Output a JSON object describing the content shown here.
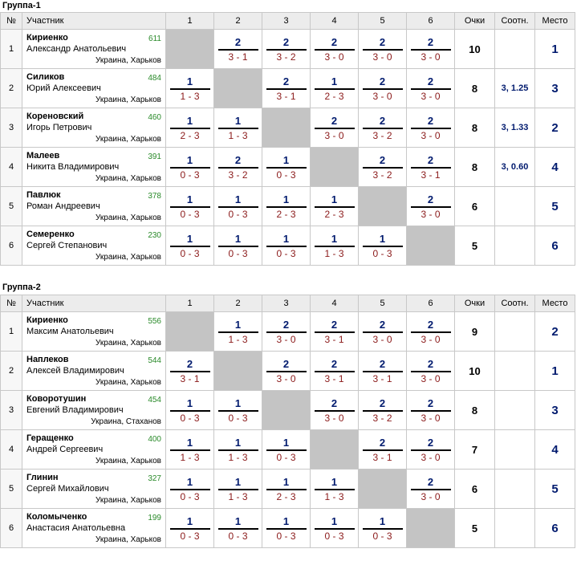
{
  "columns": {
    "num": "№",
    "player": "Участник",
    "opp": [
      "1",
      "2",
      "3",
      "4",
      "5",
      "6"
    ],
    "points": "Очки",
    "ratio": "Соотн.",
    "place": "Место"
  },
  "groups": [
    {
      "title": "Группа-1",
      "rows": [
        {
          "num": "1",
          "name": "Кириенко",
          "full": "Александр Анатольевич",
          "rating": "611",
          "city": "Украина, Харьков",
          "results": [
            null,
            {
              "p": "2",
              "s": "3 - 1"
            },
            {
              "p": "2",
              "s": "3 - 2"
            },
            {
              "p": "2",
              "s": "3 - 0"
            },
            {
              "p": "2",
              "s": "3 - 0"
            },
            {
              "p": "2",
              "s": "3 - 0"
            }
          ],
          "points": "10",
          "ratio": "",
          "place": "1"
        },
        {
          "num": "2",
          "name": "Силиков",
          "full": "Юрий Алексеевич",
          "rating": "484",
          "city": "Украина, Харьков",
          "results": [
            {
              "p": "1",
              "s": "1 - 3"
            },
            null,
            {
              "p": "2",
              "s": "3 - 1"
            },
            {
              "p": "1",
              "s": "2 - 3"
            },
            {
              "p": "2",
              "s": "3 - 0"
            },
            {
              "p": "2",
              "s": "3 - 0"
            }
          ],
          "points": "8",
          "ratio": "3, 1.25",
          "place": "3"
        },
        {
          "num": "3",
          "name": "Кореновский",
          "full": "Игорь Петрович",
          "rating": "460",
          "city": "Украина, Харьков",
          "results": [
            {
              "p": "1",
              "s": "2 - 3"
            },
            {
              "p": "1",
              "s": "1 - 3"
            },
            null,
            {
              "p": "2",
              "s": "3 - 0"
            },
            {
              "p": "2",
              "s": "3 - 2"
            },
            {
              "p": "2",
              "s": "3 - 0"
            }
          ],
          "points": "8",
          "ratio": "3, 1.33",
          "place": "2"
        },
        {
          "num": "4",
          "name": "Малеев",
          "full": "Никита Владимирович",
          "rating": "391",
          "city": "Украина, Харьков",
          "results": [
            {
              "p": "1",
              "s": "0 - 3"
            },
            {
              "p": "2",
              "s": "3 - 2"
            },
            {
              "p": "1",
              "s": "0 - 3"
            },
            null,
            {
              "p": "2",
              "s": "3 - 2"
            },
            {
              "p": "2",
              "s": "3 - 1"
            }
          ],
          "points": "8",
          "ratio": "3, 0.60",
          "place": "4"
        },
        {
          "num": "5",
          "name": "Павлюк",
          "full": "Роман Андреевич",
          "rating": "378",
          "city": "Украина, Харьков",
          "results": [
            {
              "p": "1",
              "s": "0 - 3"
            },
            {
              "p": "1",
              "s": "0 - 3"
            },
            {
              "p": "1",
              "s": "2 - 3"
            },
            {
              "p": "1",
              "s": "2 - 3"
            },
            null,
            {
              "p": "2",
              "s": "3 - 0"
            }
          ],
          "points": "6",
          "ratio": "",
          "place": "5"
        },
        {
          "num": "6",
          "name": "Семеренко",
          "full": "Сергей Степанович",
          "rating": "230",
          "city": "Украина, Харьков",
          "results": [
            {
              "p": "1",
              "s": "0 - 3"
            },
            {
              "p": "1",
              "s": "0 - 3"
            },
            {
              "p": "1",
              "s": "0 - 3"
            },
            {
              "p": "1",
              "s": "1 - 3"
            },
            {
              "p": "1",
              "s": "0 - 3"
            },
            null
          ],
          "points": "5",
          "ratio": "",
          "place": "6"
        }
      ]
    },
    {
      "title": "Группа-2",
      "rows": [
        {
          "num": "1",
          "name": "Кириенко",
          "full": "Максим Анатольевич",
          "rating": "556",
          "city": "Украина, Харьков",
          "results": [
            null,
            {
              "p": "1",
              "s": "1 - 3"
            },
            {
              "p": "2",
              "s": "3 - 0"
            },
            {
              "p": "2",
              "s": "3 - 1"
            },
            {
              "p": "2",
              "s": "3 - 0"
            },
            {
              "p": "2",
              "s": "3 - 0"
            }
          ],
          "points": "9",
          "ratio": "",
          "place": "2"
        },
        {
          "num": "2",
          "name": "Наплеков",
          "full": "Алексей Владимирович",
          "rating": "544",
          "city": "Украина, Харьков",
          "results": [
            {
              "p": "2",
              "s": "3 - 1"
            },
            null,
            {
              "p": "2",
              "s": "3 - 0"
            },
            {
              "p": "2",
              "s": "3 - 1"
            },
            {
              "p": "2",
              "s": "3 - 1"
            },
            {
              "p": "2",
              "s": "3 - 0"
            }
          ],
          "points": "10",
          "ratio": "",
          "place": "1"
        },
        {
          "num": "3",
          "name": "Коворотушин",
          "full": "Евгений Владимирович",
          "rating": "454",
          "city": "Украина, Стаханов",
          "results": [
            {
              "p": "1",
              "s": "0 - 3"
            },
            {
              "p": "1",
              "s": "0 - 3"
            },
            null,
            {
              "p": "2",
              "s": "3 - 0"
            },
            {
              "p": "2",
              "s": "3 - 2"
            },
            {
              "p": "2",
              "s": "3 - 0"
            }
          ],
          "points": "8",
          "ratio": "",
          "place": "3"
        },
        {
          "num": "4",
          "name": "Геращенко",
          "full": "Андрей Сергеевич",
          "rating": "400",
          "city": "Украина, Харьков",
          "results": [
            {
              "p": "1",
              "s": "1 - 3"
            },
            {
              "p": "1",
              "s": "1 - 3"
            },
            {
              "p": "1",
              "s": "0 - 3"
            },
            null,
            {
              "p": "2",
              "s": "3 - 1"
            },
            {
              "p": "2",
              "s": "3 - 0"
            }
          ],
          "points": "7",
          "ratio": "",
          "place": "4"
        },
        {
          "num": "5",
          "name": "Глинин",
          "full": "Сергей Михайлович",
          "rating": "327",
          "city": "Украина, Харьков",
          "results": [
            {
              "p": "1",
              "s": "0 - 3"
            },
            {
              "p": "1",
              "s": "1 - 3"
            },
            {
              "p": "1",
              "s": "2 - 3"
            },
            {
              "p": "1",
              "s": "1 - 3"
            },
            null,
            {
              "p": "2",
              "s": "3 - 0"
            }
          ],
          "points": "6",
          "ratio": "",
          "place": "5"
        },
        {
          "num": "6",
          "name": "Коломыченко",
          "full": "Анастасия Анатольевна",
          "rating": "199",
          "city": "Украина, Харьков",
          "results": [
            {
              "p": "1",
              "s": "0 - 3"
            },
            {
              "p": "1",
              "s": "0 - 3"
            },
            {
              "p": "1",
              "s": "0 - 3"
            },
            {
              "p": "1",
              "s": "0 - 3"
            },
            {
              "p": "1",
              "s": "0 - 3"
            },
            null
          ],
          "points": "5",
          "ratio": "",
          "place": "6"
        }
      ]
    }
  ]
}
